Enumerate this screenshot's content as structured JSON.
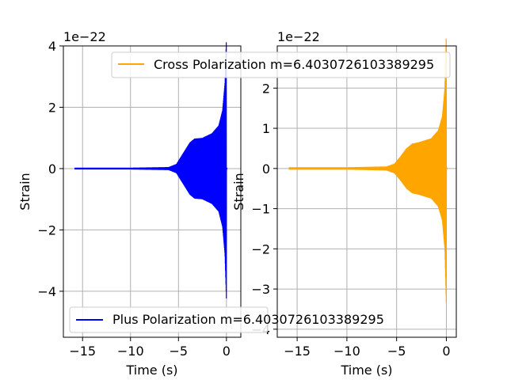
{
  "chart_data": [
    {
      "type": "line",
      "xlabel": "Time (s)",
      "ylabel": "Strain",
      "offset_text": "1e−22",
      "xlim": [
        -17,
        1.5
      ],
      "ylim": [
        -5.5,
        4
      ],
      "xticks": [
        -15,
        -10,
        -5,
        0
      ],
      "xtick_labels": [
        "−15",
        "−10",
        "−5",
        "0"
      ],
      "yticks": [
        -4,
        -2,
        0,
        2,
        4
      ],
      "ytick_labels": [
        "−4",
        "−2",
        "0",
        "2",
        "4"
      ],
      "grid": true,
      "legend_position": "lower-left",
      "series": [
        {
          "name": "Plus Polarization m=6.4030726103389295",
          "color": "#0000ff",
          "x_start": -15.8,
          "x_end": 0.05,
          "envelope": [
            {
              "x": -15.8,
              "amp": 0.03
            },
            {
              "x": -10,
              "amp": 0.03
            },
            {
              "x": -6,
              "amp": 0.05
            },
            {
              "x": -5.2,
              "amp": 0.15
            },
            {
              "x": -4.8,
              "amp": 0.35
            },
            {
              "x": -4.3,
              "amp": 0.6
            },
            {
              "x": -3.8,
              "amp": 0.85
            },
            {
              "x": -3.3,
              "amp": 0.98
            },
            {
              "x": -2.5,
              "amp": 1.0
            },
            {
              "x": -1.5,
              "amp": 1.15
            },
            {
              "x": -0.8,
              "amp": 1.4
            },
            {
              "x": -0.4,
              "amp": 1.9
            },
            {
              "x": -0.15,
              "amp": 2.8
            },
            {
              "x": 0,
              "amp": 4.3
            }
          ]
        }
      ]
    },
    {
      "type": "line",
      "xlabel": "Time (s)",
      "ylabel": "Strain",
      "offset_text": "1e−22",
      "xlim": [
        -17,
        1
      ],
      "ylim": [
        -4.2,
        3.05
      ],
      "xticks": [
        -15,
        -10,
        -5,
        0
      ],
      "xtick_labels": [
        "−15",
        "−10",
        "−5",
        "0"
      ],
      "yticks": [
        -4,
        -3,
        -2,
        -1,
        0,
        1,
        2
      ],
      "ytick_labels": [
        "−4",
        "−3",
        "−2",
        "−1",
        "0",
        "1",
        "2"
      ],
      "grid": true,
      "legend_position": "upper-center",
      "series": [
        {
          "name": "Cross Polarization m=6.4030726103389295",
          "color": "#ffa500",
          "x_start": -15.8,
          "x_end": 0.05,
          "envelope": [
            {
              "x": -15.8,
              "amp": 0.03
            },
            {
              "x": -10,
              "amp": 0.03
            },
            {
              "x": -6,
              "amp": 0.05
            },
            {
              "x": -5.2,
              "amp": 0.12
            },
            {
              "x": -4.6,
              "amp": 0.3
            },
            {
              "x": -4.0,
              "amp": 0.5
            },
            {
              "x": -3.4,
              "amp": 0.62
            },
            {
              "x": -2.8,
              "amp": 0.65
            },
            {
              "x": -1.5,
              "amp": 0.75
            },
            {
              "x": -0.8,
              "amp": 0.95
            },
            {
              "x": -0.4,
              "amp": 1.3
            },
            {
              "x": -0.15,
              "amp": 2.0
            },
            {
              "x": 0,
              "amp": 3.4
            }
          ]
        }
      ]
    }
  ]
}
